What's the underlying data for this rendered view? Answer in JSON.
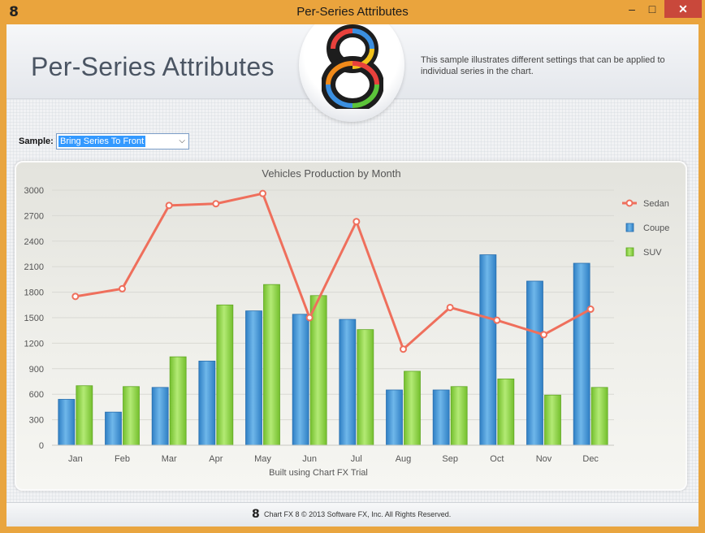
{
  "window": {
    "title": "Per-Series Attributes",
    "icon": "chartfx-8-logo-icon",
    "controls": {
      "minimize": "–",
      "maximize": "□",
      "close": "✕"
    }
  },
  "header": {
    "title": "Per-Series Attributes",
    "description": "This sample illustrates different settings that can be applied to individual series in the chart."
  },
  "sample": {
    "label": "Sample:",
    "selected": "Bring Series To Front"
  },
  "footer": {
    "text": "Chart FX 8 © 2013 Software FX, Inc. All Rights Reserved."
  },
  "colors": {
    "sedan": "#ef6f5c",
    "coupe": "#3d95d8",
    "suv": "#8ed644",
    "accent_frame": "#e9a53f"
  },
  "chart_data": {
    "type": "bar",
    "title": "Vehicles Production by Month",
    "footnote": "Built using Chart FX Trial",
    "categories": [
      "Jan",
      "Feb",
      "Mar",
      "Apr",
      "May",
      "Jun",
      "Jul",
      "Aug",
      "Sep",
      "Oct",
      "Nov",
      "Dec"
    ],
    "ylim": [
      0,
      3000
    ],
    "yticks": [
      0,
      300,
      600,
      900,
      1200,
      1500,
      1800,
      2100,
      2400,
      2700,
      3000
    ],
    "grid": true,
    "legend_position": "right",
    "series": [
      {
        "name": "Sedan",
        "kind": "line",
        "values": [
          1750,
          1840,
          2820,
          2840,
          2960,
          1500,
          2630,
          1130,
          1620,
          1470,
          1300,
          1600
        ]
      },
      {
        "name": "Coupe",
        "kind": "bar",
        "values": [
          540,
          390,
          680,
          990,
          1580,
          1540,
          1480,
          650,
          650,
          2240,
          1930,
          2140
        ]
      },
      {
        "name": "SUV",
        "kind": "bar",
        "values": [
          700,
          690,
          1040,
          1650,
          1890,
          1760,
          1360,
          870,
          690,
          780,
          590,
          680
        ]
      }
    ]
  }
}
